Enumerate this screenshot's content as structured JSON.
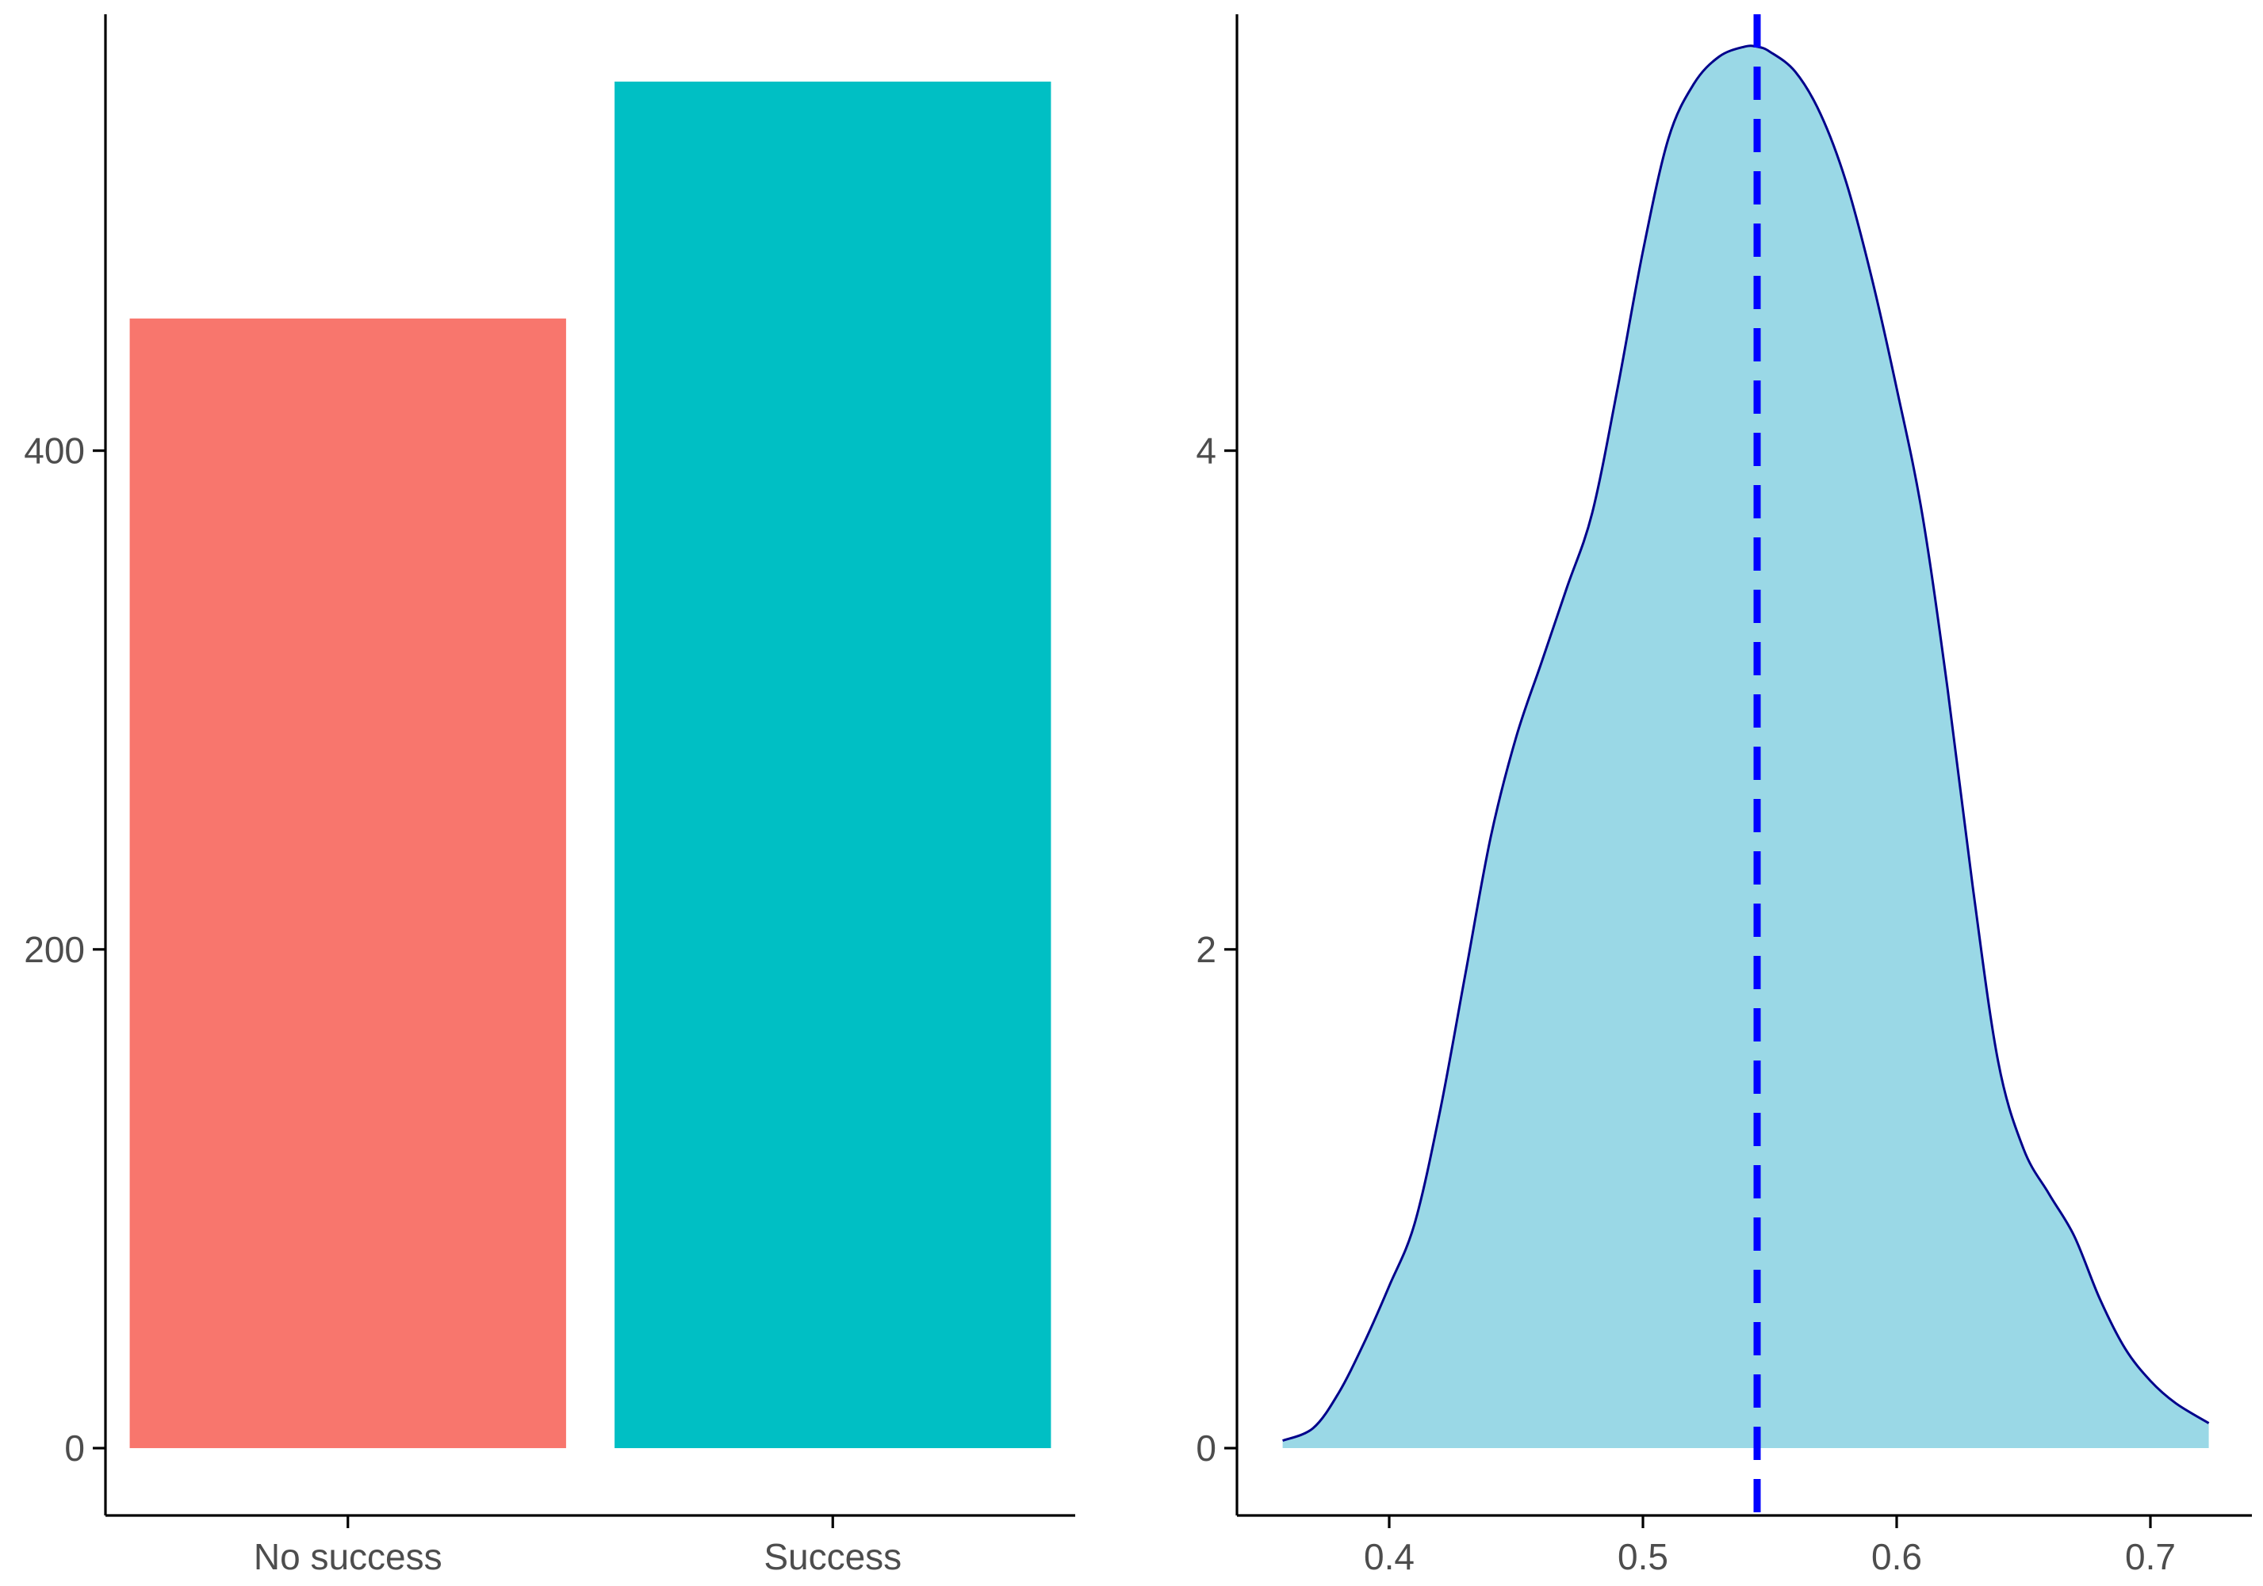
{
  "chart_data": [
    {
      "type": "bar",
      "title": "",
      "xlabel": "",
      "ylabel": "",
      "categories": [
        "No success",
        "Success"
      ],
      "values": [
        453,
        548
      ],
      "colors": [
        "#F8766D",
        "#00BFC4"
      ],
      "ylim": [
        -27,
        575
      ],
      "yticks": [
        0,
        200,
        400
      ],
      "ytick_labels": [
        "0",
        "200",
        "400"
      ],
      "grid": false
    },
    {
      "type": "area",
      "title": "",
      "xlabel": "",
      "ylabel": "",
      "fill_color": "#9AD8E6",
      "line_color": "#00008B",
      "xlim": [
        0.34,
        0.74
      ],
      "ylim": [
        -0.27,
        5.75
      ],
      "xticks": [
        0.4,
        0.5,
        0.6,
        0.7
      ],
      "xtick_labels": [
        "0.4",
        "0.5",
        "0.6",
        "0.7"
      ],
      "yticks": [
        0,
        2,
        4
      ],
      "ytick_labels": [
        "0",
        "2",
        "4"
      ],
      "x": [
        0.358,
        0.37,
        0.38,
        0.39,
        0.4,
        0.41,
        0.42,
        0.43,
        0.44,
        0.45,
        0.46,
        0.47,
        0.48,
        0.49,
        0.5,
        0.51,
        0.52,
        0.53,
        0.54,
        0.545,
        0.55,
        0.56,
        0.57,
        0.58,
        0.59,
        0.6,
        0.61,
        0.62,
        0.63,
        0.64,
        0.65,
        0.66,
        0.67,
        0.68,
        0.69,
        0.7,
        0.71,
        0.723
      ],
      "y": [
        0.03,
        0.08,
        0.22,
        0.42,
        0.65,
        0.9,
        1.35,
        1.9,
        2.45,
        2.85,
        3.15,
        3.45,
        3.75,
        4.25,
        4.8,
        5.25,
        5.47,
        5.58,
        5.62,
        5.62,
        5.6,
        5.52,
        5.35,
        5.08,
        4.7,
        4.25,
        3.75,
        3.05,
        2.25,
        1.55,
        1.2,
        1.02,
        0.85,
        0.6,
        0.4,
        0.27,
        0.18,
        0.1
      ],
      "reference_line": {
        "x": 0.545,
        "style": "dashed",
        "color": "#0000FF"
      },
      "grid": false
    }
  ]
}
